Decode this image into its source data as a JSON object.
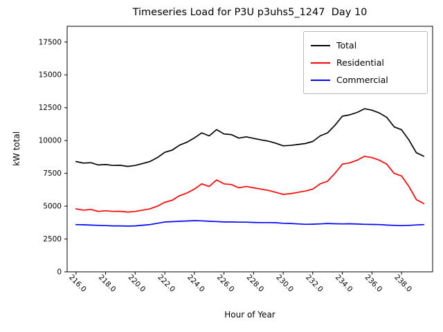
{
  "chart_data": {
    "type": "line",
    "title": "Timeseries Load for P3U p3uhs5_1247  Day 10",
    "xlabel": "Hour of Year",
    "ylabel": "kW total",
    "xlim": [
      215.4,
      240.1
    ],
    "ylim": [
      0,
      18700
    ],
    "grid": false,
    "legend_position": "upper right",
    "xticks": [
      216,
      218,
      220,
      222,
      224,
      226,
      228,
      230,
      232,
      234,
      236,
      238
    ],
    "xtick_labels": [
      "216.0",
      "218.0",
      "220.0",
      "222.0",
      "224.0",
      "226.0",
      "228.0",
      "230.0",
      "232.0",
      "234.0",
      "236.0",
      "238.0"
    ],
    "yticks": [
      0,
      2500,
      5000,
      7500,
      10000,
      12500,
      15000,
      17500
    ],
    "ytick_labels": [
      "0",
      "2500",
      "5000",
      "7500",
      "10000",
      "12500",
      "15000",
      "17500"
    ],
    "x": [
      216.0,
      216.5,
      217.0,
      217.5,
      218.0,
      218.5,
      219.0,
      219.5,
      220.0,
      220.5,
      221.0,
      221.5,
      222.0,
      222.5,
      223.0,
      223.5,
      224.0,
      224.5,
      225.0,
      225.5,
      226.0,
      226.5,
      227.0,
      227.5,
      228.0,
      228.5,
      229.0,
      229.5,
      230.0,
      230.5,
      231.0,
      231.5,
      232.0,
      232.5,
      233.0,
      233.5,
      234.0,
      234.5,
      235.0,
      235.5,
      236.0,
      236.5,
      237.0,
      237.5,
      238.0,
      238.5,
      239.0,
      239.5
    ],
    "series": [
      {
        "name": "Total",
        "color": "#000000",
        "values": [
          8400,
          8280,
          8310,
          8140,
          8170,
          8100,
          8110,
          8030,
          8100,
          8250,
          8400,
          8700,
          9100,
          9270,
          9650,
          9870,
          10200,
          10580,
          10350,
          10830,
          10500,
          10450,
          10180,
          10280,
          10160,
          10050,
          9950,
          9790,
          9600,
          9630,
          9700,
          9770,
          9930,
          10350,
          10580,
          11160,
          11850,
          11960,
          12140,
          12420,
          12310,
          12100,
          11760,
          11040,
          10820,
          10040,
          9070,
          8800
        ]
      },
      {
        "name": "Residential",
        "color": "#ff0000",
        "values": [
          4800,
          4700,
          4750,
          4600,
          4650,
          4600,
          4610,
          4550,
          4600,
          4700,
          4800,
          5000,
          5300,
          5450,
          5800,
          6000,
          6300,
          6700,
          6500,
          7000,
          6700,
          6650,
          6400,
          6500,
          6400,
          6300,
          6200,
          6050,
          5900,
          5950,
          6050,
          6150,
          6300,
          6700,
          6900,
          7500,
          8200,
          8300,
          8500,
          8800,
          8700,
          8500,
          8200,
          7500,
          7300,
          6500,
          5500,
          5200
        ]
      },
      {
        "name": "Commercial",
        "color": "#0000ff",
        "values": [
          3600,
          3580,
          3560,
          3540,
          3520,
          3500,
          3500,
          3480,
          3500,
          3550,
          3600,
          3700,
          3800,
          3820,
          3850,
          3870,
          3900,
          3880,
          3850,
          3830,
          3800,
          3800,
          3780,
          3780,
          3760,
          3750,
          3750,
          3740,
          3700,
          3680,
          3650,
          3620,
          3630,
          3650,
          3680,
          3660,
          3650,
          3660,
          3640,
          3620,
          3610,
          3600,
          3560,
          3540,
          3520,
          3540,
          3570,
          3600
        ]
      }
    ]
  }
}
